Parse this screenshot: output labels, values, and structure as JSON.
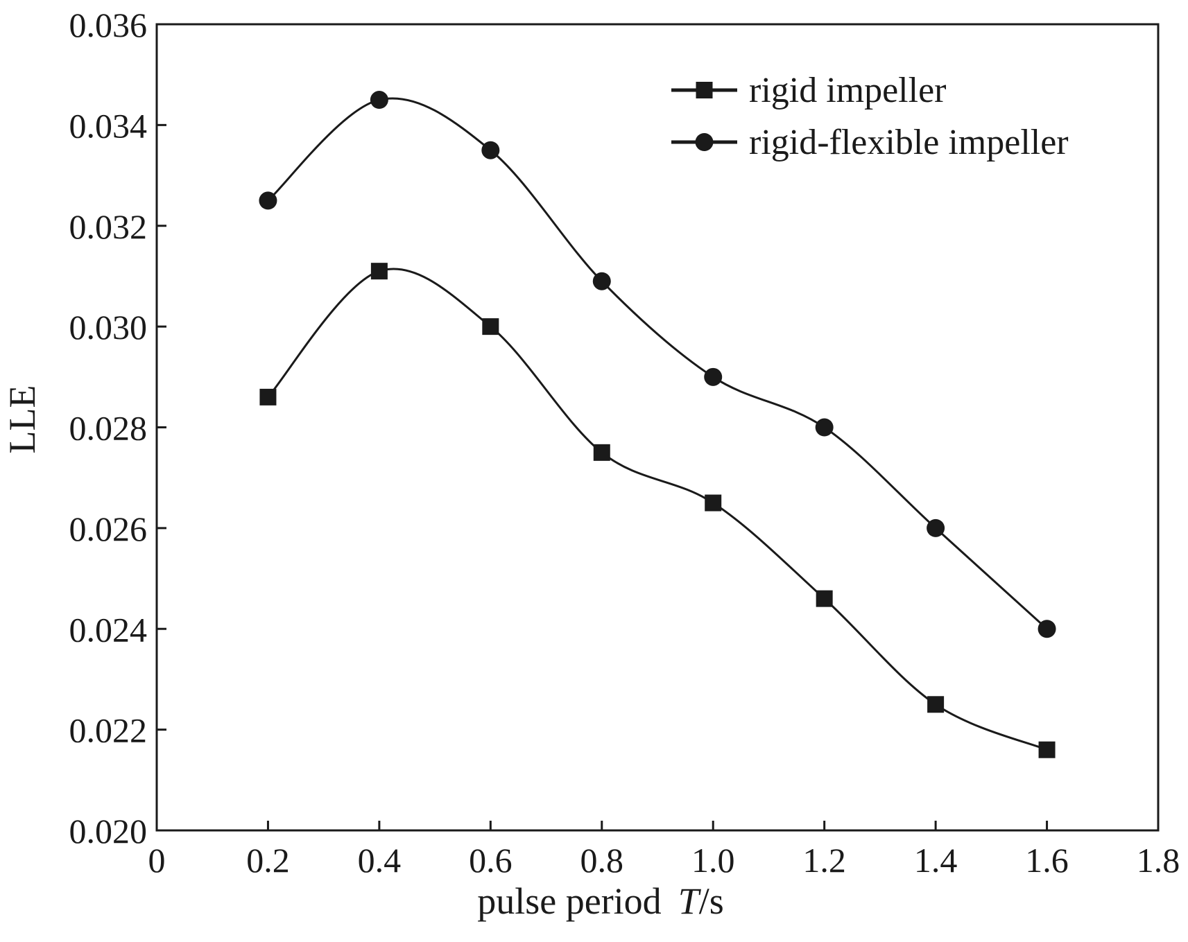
{
  "chart_data": {
    "type": "line",
    "title": "",
    "xlabel": "pulse period",
    "xlabel_symbol": "T",
    "xlabel_unit": "/s",
    "ylabel": "LLE",
    "xlim": [
      0,
      1.8
    ],
    "ylim": [
      0.02,
      0.036
    ],
    "x_ticks": [
      0,
      0.2,
      0.4,
      0.6,
      0.8,
      1.0,
      1.2,
      1.4,
      1.6,
      1.8
    ],
    "x_tick_labels": [
      "0",
      "0.2",
      "0.4",
      "0.6",
      "0.8",
      "1.0",
      "1.2",
      "1.4",
      "1.6",
      "1.8"
    ],
    "y_ticks": [
      0.02,
      0.022,
      0.024,
      0.026,
      0.028,
      0.03,
      0.032,
      0.034,
      0.036
    ],
    "y_tick_labels": [
      "0.020",
      "0.022",
      "0.024",
      "0.026",
      "0.028",
      "0.030",
      "0.032",
      "0.034",
      "0.036"
    ],
    "grid": false,
    "legend_position": "top-right",
    "line_color": "#1a1a1a",
    "x": [
      0.2,
      0.4,
      0.6,
      0.8,
      1.0,
      1.2,
      1.4,
      1.6
    ],
    "series": [
      {
        "name": "rigid impeller",
        "marker": "square",
        "values": [
          0.0286,
          0.0311,
          0.03,
          0.0275,
          0.0265,
          0.0246,
          0.0225,
          0.0216
        ]
      },
      {
        "name": "rigid-flexible impeller",
        "marker": "circle",
        "values": [
          0.0325,
          0.0345,
          0.0335,
          0.0309,
          0.029,
          0.028,
          0.026,
          0.024
        ]
      }
    ]
  }
}
